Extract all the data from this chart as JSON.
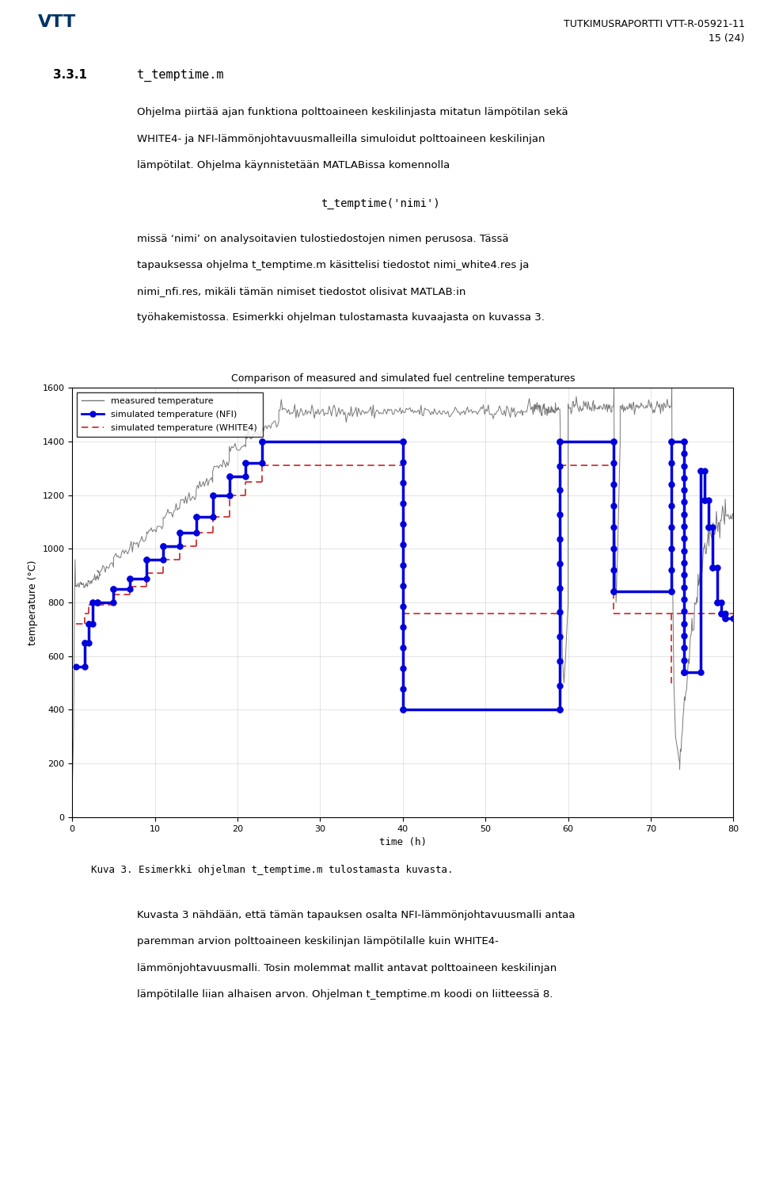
{
  "title": "Comparison of measured and simulated fuel centreline temperatures",
  "xlabel": "time (h)",
  "ylabel": "temperature (°C)",
  "xlim": [
    0,
    80
  ],
  "ylim": [
    0,
    1600
  ],
  "xticks": [
    0,
    10,
    20,
    30,
    40,
    50,
    60,
    70,
    80
  ],
  "yticks": [
    0,
    200,
    400,
    600,
    800,
    1000,
    1200,
    1400,
    1600
  ],
  "legend_labels": [
    "measured temperature",
    "simulated temperature (NFI)",
    "simulated temperature (WHITE4)"
  ],
  "measured_color": "#777777",
  "nfi_color": "#0000dd",
  "white4_color": "#cc2222",
  "background_color": "#ffffff",
  "page_width": 9.6,
  "page_height": 15.05,
  "header_text": "TUTKIMUSRAPORTTI VTT-R-05921-11",
  "header_page": "15 (24)",
  "section": "3.3.1",
  "section_title": "t_temptime.m",
  "para1": "Ohjelma piirtää ajan funktiona polttoaineen keskilinjasta mitatun lämpötilan sekä\nWHITE4- ja NFI-lämmönjohtavuusmalleilla simuloidut polttoaineen keskilinjan\nlämpötilat. Ohjelma käynnistetään MATLABissa komennolla",
  "code_line": "t_temptime('nimi')",
  "para2": "missä ‘nimi’ on analysoitavien tulostiedostojen nimen perusosa. Tässä\ntapauksessa ohjelma t_temptime.m käsittelisi tiedostot nimi_white4.res ja\nnimi_nfi.res, mikäli tämän nimiset tiedostot olisivat MATLAB:in\ntyöhakemistossa. Esimerkki ohjelman tulostamasta kuvaajasta on kuvassa 3.",
  "caption": "Kuva 3. Esimerkki ohjelman t_temptime.m tulostamasta kuvasta.",
  "para3": "Kuvasta 3 nähdään, että tämän tapauksen osalta NFI-lämmönjohtavuusmalli antaa\nparemman arvion polttoaineen keskilinjan lämpötilalle kuin WHITE4-\nlämmönjohtavuusmalli. Tosin molemmat mallit antavat polttoaineen keskilinjan\nlämpötilalle liian alhaisen arvon. Ohjelman t_temptime.m koodi on liitteessä 8."
}
